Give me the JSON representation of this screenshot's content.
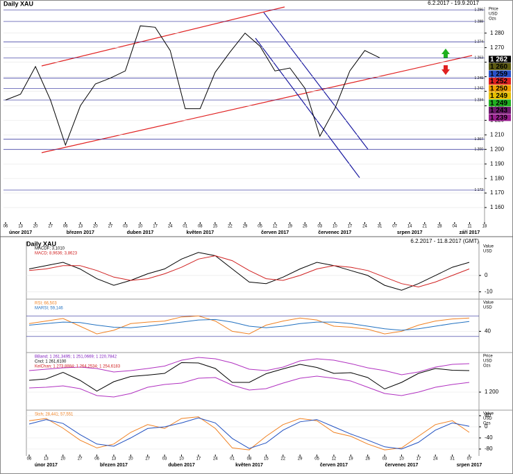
{
  "chart_data": [
    {
      "type": "line",
      "title": "Daily XAU",
      "subtitle": "6.2.2017 - 19.9.2017",
      "axis_header": [
        "Price",
        "USD",
        "Ozs"
      ],
      "categories": [
        "06",
        "13",
        "20",
        "27",
        "06",
        "13",
        "20",
        "27",
        "03",
        "10",
        "17",
        "24",
        "01",
        "08",
        "15",
        "22",
        "29",
        "05",
        "12",
        "19",
        "26",
        "03",
        "10",
        "17",
        "24",
        "31",
        "07",
        "14",
        "21",
        "28",
        "04",
        "11",
        "18"
      ],
      "months": [
        null,
        "únor 2017",
        null,
        null,
        null,
        "březen 2017",
        null,
        null,
        null,
        "duben 2017",
        null,
        null,
        null,
        "květen 2017",
        null,
        null,
        null,
        null,
        "červen 2017",
        null,
        null,
        null,
        "červenec 2017",
        null,
        null,
        null,
        null,
        "srpen 2017",
        null,
        null,
        null,
        "září 2017",
        null
      ],
      "series": [
        {
          "color": "#000000",
          "values": [
            1234,
            1238,
            1257,
            1234,
            1203,
            1230,
            1245,
            1249,
            1254,
            1285,
            1284,
            1268,
            1228,
            1228,
            1253,
            1267,
            1280,
            1271,
            1254,
            1256,
            1242,
            1209,
            1228,
            1254,
            1268,
            1263,
            null,
            null,
            null,
            null,
            null,
            null,
            null
          ]
        }
      ],
      "ylim": [
        1150,
        1298
      ],
      "yticks": [
        {
          "value": 1160,
          "label": "1 160"
        },
        {
          "value": 1170,
          "label": "1 170"
        },
        {
          "value": 1180,
          "label": "1 180"
        },
        {
          "value": 1190,
          "label": "1 190"
        },
        {
          "value": 1200,
          "label": "1 200"
        },
        {
          "value": 1210,
          "label": "1 210"
        },
        {
          "value": 1220,
          "label": "1 220"
        },
        {
          "value": 1230,
          "label": "1 230"
        },
        {
          "value": 1240,
          "label": "1 240"
        },
        {
          "value": 1250,
          "label": "1 250"
        },
        {
          "value": 1260,
          "label": "1 260"
        },
        {
          "value": 1270,
          "label": "1 270"
        },
        {
          "value": 1280,
          "label": "1 280"
        }
      ],
      "levels": [
        {
          "value": 1296,
          "label": "1 296"
        },
        {
          "value": 1288,
          "label": "1 288"
        },
        {
          "value": 1274,
          "label": "1 274"
        },
        {
          "value": 1263,
          "label": "1 263"
        },
        {
          "value": 1249,
          "label": "1 249"
        },
        {
          "value": 1242,
          "label": "1 242"
        },
        {
          "value": 1234,
          "label": "1 234"
        },
        {
          "value": 1207,
          "label": "1 207"
        },
        {
          "value": 1200,
          "label": "1 200"
        },
        {
          "value": 1172,
          "label": "1 172"
        }
      ],
      "price_tags": [
        {
          "value": 1262,
          "label": "1 262",
          "color": "#000000"
        },
        {
          "value": 1260,
          "label": "1 260",
          "color": "#5c5a12"
        },
        {
          "value": 1259,
          "label": "1 259",
          "color": "#2850c8"
        },
        {
          "value": 1252,
          "label": "1 252",
          "color": "#e02020"
        },
        {
          "value": 1250,
          "label": "1 250",
          "color": "#f0a000"
        },
        {
          "value": 1249,
          "label": "1 249",
          "color": "#e8c000"
        },
        {
          "value": 1249,
          "label": "1 249",
          "color": "#20b020"
        },
        {
          "value": 1243,
          "label": "1 243",
          "color": "#6e1a6e"
        },
        {
          "value": 1239,
          "label": "1 239",
          "color": "#9a2090"
        }
      ]
    },
    {
      "type": "line",
      "title": "Daily XAU",
      "subtitle": "6.2.2017 - 11.8.2017 (GMT)",
      "axis_header": [
        "Value",
        "USD"
      ],
      "legend": [
        {
          "text": "MACDF; 3,1010",
          "color": "#000000"
        },
        {
          "text": "MACD; 8,9636; 3,8623",
          "color": "#d02020"
        }
      ],
      "series": [
        {
          "color": "#000000",
          "values": [
            4,
            6,
            8,
            4,
            -2,
            -6,
            -3,
            1,
            4,
            10,
            14,
            12,
            4,
            -4,
            -5,
            -1,
            4,
            8,
            6,
            3,
            0,
            -6,
            -9,
            -5,
            0,
            5,
            8
          ]
        },
        {
          "color": "#d02020",
          "values": [
            3,
            4,
            6,
            6,
            3,
            -1,
            -3,
            -2,
            1,
            5,
            10,
            12,
            9,
            3,
            -2,
            -3,
            0,
            4,
            6,
            5,
            3,
            -1,
            -5,
            -7,
            -4,
            0,
            4
          ]
        }
      ],
      "ylim": [
        -14,
        19
      ],
      "yticks": [
        0,
        -10
      ]
    },
    {
      "type": "line",
      "axis_header": [
        "Value",
        "USD"
      ],
      "legend": [
        {
          "text": "RSI; 66,503",
          "color": "#f08020"
        },
        {
          "text": "MARSI; 59,146",
          "color": "#2070c0"
        }
      ],
      "series": [
        {
          "color": "#f08020",
          "values": [
            55,
            60,
            65,
            50,
            35,
            42,
            55,
            58,
            60,
            68,
            70,
            60,
            40,
            35,
            52,
            60,
            66,
            62,
            50,
            48,
            44,
            35,
            40,
            52,
            60,
            64,
            66
          ]
        },
        {
          "color": "#2070c0",
          "values": [
            52,
            55,
            58,
            57,
            52,
            48,
            47,
            50,
            54,
            58,
            62,
            63,
            58,
            50,
            47,
            50,
            55,
            58,
            58,
            55,
            50,
            45,
            42,
            45,
            50,
            55,
            59
          ]
        }
      ],
      "ylim": [
        0,
        100
      ],
      "yticks": [
        40
      ],
      "levels": [
        30,
        70
      ]
    },
    {
      "type": "line",
      "axis_header": [
        "Price",
        "USD",
        "Ozs"
      ],
      "legend": [
        {
          "text": "BBand; 1 261,3495; 1 251,0669; 1 220,7842",
          "color": "#8020c0"
        },
        {
          "text": "Cncl; 1 261,6100",
          "color": "#000000"
        },
        {
          "text": "KelChan; 1 273,8884; 1 264,2534; 1 254,6183",
          "color": "#d02020"
        }
      ],
      "series": [
        {
          "color": "#b030c0",
          "values": [
            1262,
            1266,
            1270,
            1272,
            1268,
            1258,
            1262,
            1268,
            1275,
            1292,
            1300,
            1296,
            1284,
            1266,
            1262,
            1272,
            1290,
            1296,
            1292,
            1282,
            1270,
            1262,
            1250,
            1258,
            1272,
            1280,
            1282
          ]
        },
        {
          "color": "#000000",
          "values": [
            1234,
            1238,
            1257,
            1234,
            1203,
            1230,
            1245,
            1249,
            1254,
            1285,
            1284,
            1268,
            1228,
            1228,
            1253,
            1267,
            1280,
            1271,
            1254,
            1256,
            1242,
            1209,
            1228,
            1254,
            1268,
            1263,
            1262
          ]
        },
        {
          "color": "#b030c0",
          "values": [
            1212,
            1214,
            1218,
            1210,
            1190,
            1186,
            1196,
            1214,
            1222,
            1226,
            1240,
            1242,
            1220,
            1206,
            1210,
            1226,
            1240,
            1246,
            1240,
            1232,
            1214,
            1196,
            1190,
            1200,
            1214,
            1222,
            1228
          ]
        }
      ],
      "ylim": [
        1150,
        1310
      ],
      "yticks": [
        {
          "value": 1200,
          "label": "1 200"
        }
      ]
    },
    {
      "type": "line",
      "axis_header": [
        "Value",
        "USD",
        "Ozs"
      ],
      "legend": [
        {
          "text": "Stch; 28,441; 57,551",
          "color": "#f08020"
        }
      ],
      "categories": [
        "06",
        "13",
        "20",
        "27",
        "06",
        "13",
        "20",
        "27",
        "03",
        "10",
        "17",
        "24",
        "01",
        "08",
        "15",
        "22",
        "29",
        "05",
        "12",
        "19",
        "26",
        "03",
        "10",
        "17",
        "24",
        "31",
        "07"
      ],
      "months": [
        null,
        "únor 2017",
        null,
        null,
        null,
        "březen 2017",
        null,
        null,
        null,
        "duben 2017",
        null,
        null,
        null,
        "květen 2017",
        null,
        null,
        null,
        null,
        "červen 2017",
        null,
        null,
        null,
        "červenec 2017",
        null,
        null,
        null,
        "srpen 2017"
      ],
      "series": [
        {
          "color": "#f08020",
          "values": [
            22,
            30,
            -5,
            -48,
            -76,
            -62,
            -20,
            8,
            -6,
            30,
            36,
            -6,
            -76,
            -83,
            -34,
            8,
            30,
            22,
            -20,
            -34,
            -62,
            -83,
            -76,
            -34,
            8,
            22,
            -20
          ]
        },
        {
          "color": "#2050c0",
          "values": [
            10,
            26,
            12,
            -28,
            -62,
            -70,
            -40,
            -6,
            0,
            14,
            32,
            14,
            -42,
            -78,
            -58,
            -12,
            18,
            26,
            0,
            -26,
            -48,
            -72,
            -80,
            -56,
            -12,
            14,
            2
          ]
        }
      ],
      "ylim": [
        -100,
        55
      ],
      "yticks": [
        40,
        0,
        -40,
        -80
      ]
    }
  ]
}
